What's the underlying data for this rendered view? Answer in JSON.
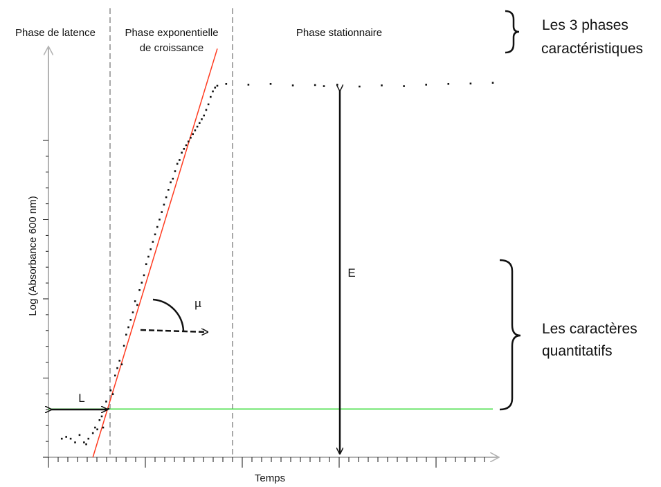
{
  "chart_data": {
    "type": "scatter",
    "title": "",
    "xlabel": "Temps",
    "ylabel": "Log (Absorbance 600 nm)",
    "xlim": [
      0,
      100
    ],
    "ylim": [
      0,
      100
    ],
    "grid": false,
    "phases": [
      {
        "label": "Phase de latence",
        "x_end": 13
      },
      {
        "label_lines": [
          "Phase exponentielle",
          "de croissance"
        ],
        "x_start": 13,
        "x_end": 37
      },
      {
        "label": "Phase stationnaire",
        "x_start": 37
      }
    ],
    "series": [
      {
        "type": "scatter",
        "points": [
          [
            3,
            5
          ],
          [
            4,
            5.5
          ],
          [
            5,
            5
          ],
          [
            6,
            4
          ],
          [
            7,
            6
          ],
          [
            8,
            4
          ],
          [
            8.5,
            3.5
          ],
          [
            9,
            5
          ],
          [
            10,
            6.5
          ],
          [
            10.5,
            8
          ],
          [
            11,
            7.5
          ],
          [
            11.5,
            10
          ],
          [
            12,
            11
          ],
          [
            12.3,
            8
          ],
          [
            13,
            15
          ],
          [
            13.5,
            13
          ],
          [
            14,
            18
          ],
          [
            14.5,
            17
          ],
          [
            15,
            22
          ],
          [
            15.5,
            24
          ],
          [
            16,
            26
          ],
          [
            16.5,
            25
          ],
          [
            17,
            30
          ],
          [
            17.5,
            33
          ],
          [
            18,
            35
          ],
          [
            18.5,
            37
          ],
          [
            19,
            39
          ],
          [
            19.5,
            42
          ],
          [
            20,
            41
          ],
          [
            20.5,
            45
          ],
          [
            21,
            47
          ],
          [
            21.5,
            49
          ],
          [
            22,
            52
          ],
          [
            22.5,
            54
          ],
          [
            23,
            56
          ],
          [
            23.5,
            58
          ],
          [
            24,
            60
          ],
          [
            24.5,
            62
          ],
          [
            25,
            64
          ],
          [
            25.5,
            66
          ],
          [
            26,
            68
          ],
          [
            26.5,
            70
          ],
          [
            27,
            72
          ],
          [
            27.5,
            74
          ],
          [
            28,
            75
          ],
          [
            28.5,
            77
          ],
          [
            29,
            79
          ],
          [
            29.5,
            80
          ],
          [
            30,
            82
          ],
          [
            30.5,
            83
          ],
          [
            31,
            84
          ],
          [
            31.5,
            85
          ],
          [
            32,
            86
          ],
          [
            32.5,
            87
          ],
          [
            33,
            88
          ],
          [
            33.5,
            89
          ],
          [
            34,
            90
          ],
          [
            34.5,
            91
          ],
          [
            35,
            92
          ],
          [
            35.5,
            93.5
          ],
          [
            36,
            95
          ],
          [
            36.5,
            97
          ],
          [
            37,
            98.5
          ],
          [
            37.5,
            99.5
          ],
          [
            38,
            100
          ],
          [
            40,
            100.5
          ],
          [
            45,
            100.3
          ],
          [
            50,
            100.5
          ],
          [
            55,
            100.1
          ],
          [
            60,
            100.2
          ],
          [
            62,
            99.9
          ],
          [
            65,
            100.3
          ],
          [
            70,
            99.8
          ],
          [
            75,
            100.1
          ],
          [
            80,
            99.9
          ],
          [
            85,
            100.3
          ],
          [
            90,
            100.5
          ],
          [
            95,
            100.6
          ],
          [
            100,
            100.8
          ]
        ]
      },
      {
        "type": "line",
        "name": "",
        "color": "#ff3a1f",
        "points": [
          [
            10,
            0
          ],
          [
            38,
            110
          ]
        ]
      },
      {
        "type": "line",
        "name": "",
        "color": "#3ddc3d",
        "points": [
          [
            0,
            13
          ],
          [
            100,
            13
          ]
        ]
      }
    ],
    "annotations": {
      "L": "L",
      "E": "E",
      "mu": "µ"
    },
    "brackets": [
      {
        "label_lines": [
          "Les 3 phases",
          "caractéristiques"
        ]
      },
      {
        "label_lines": [
          "Les caractères",
          "quantitatifs"
        ]
      }
    ],
    "colors": {
      "axis": "#b3b3b3",
      "dashed": "#a8a8a8",
      "points": "#111111",
      "slope": "#ff3a1f",
      "threshold": "#3ddc3d",
      "text": "#111111"
    }
  }
}
